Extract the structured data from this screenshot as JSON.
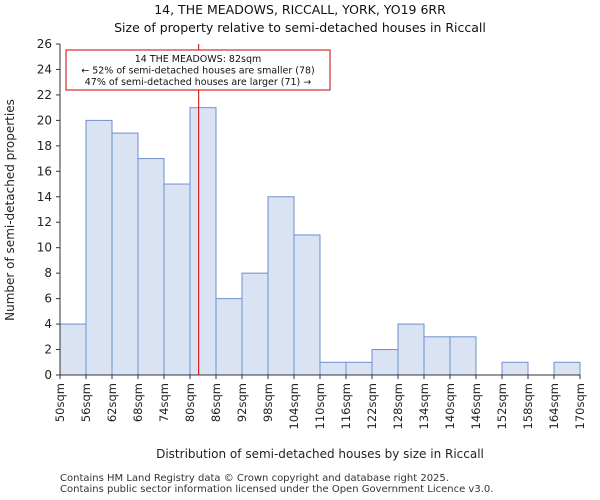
{
  "chart_data": {
    "type": "bar",
    "title": "14, THE MEADOWS, RICCALL, YORK, YO19 6RR",
    "subtitle": "Size of property relative to semi-detached houses in Riccall",
    "xlabel": "Distribution of semi-detached houses by size in Riccall",
    "ylabel": "Number of semi-detached properties",
    "bin_edges": [
      50,
      56,
      62,
      68,
      74,
      80,
      86,
      92,
      98,
      104,
      110,
      116,
      122,
      128,
      134,
      140,
      146,
      152,
      158,
      164,
      170
    ],
    "tick_labels": [
      "50sqm",
      "56sqm",
      "62sqm",
      "68sqm",
      "74sqm",
      "80sqm",
      "86sqm",
      "92sqm",
      "98sqm",
      "104sqm",
      "110sqm",
      "116sqm",
      "122sqm",
      "128sqm",
      "134sqm",
      "140sqm",
      "146sqm",
      "152sqm",
      "158sqm",
      "164sqm",
      "170sqm"
    ],
    "values": [
      4,
      20,
      19,
      17,
      15,
      21,
      6,
      8,
      14,
      11,
      1,
      1,
      2,
      4,
      3,
      3,
      0,
      1,
      0,
      1
    ],
    "ylim": [
      0,
      26
    ],
    "yticks": [
      0,
      2,
      4,
      6,
      8,
      10,
      12,
      14,
      16,
      18,
      20,
      22,
      24,
      26
    ],
    "grid": false,
    "bar_color": "#dae3f3",
    "bar_edge_color": "#6f8fcf",
    "marker": {
      "value": 82,
      "color": "#cc0000",
      "annotation": [
        "14 THE MEADOWS: 82sqm",
        "← 52% of semi-detached houses are smaller (78)",
        "47% of semi-detached houses are larger (71) →"
      ]
    }
  },
  "footer": [
    "Contains HM Land Registry data © Crown copyright and database right 2025.",
    "Contains public sector information licensed under the Open Government Licence v3.0."
  ]
}
